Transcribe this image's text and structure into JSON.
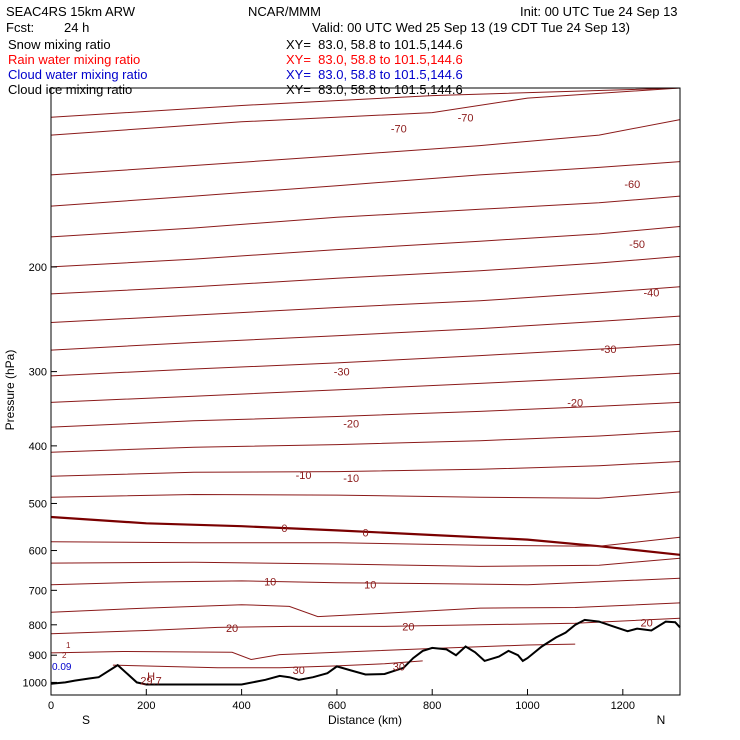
{
  "header": {
    "model": "SEAC4RS 15km ARW",
    "org": "NCAR/MMM",
    "init": "Init: 00 UTC Tue 24 Sep 13",
    "fcst_label": "Fcst:",
    "fcst_value": "24 h",
    "valid": "Valid: 00 UTC Wed 25 Sep 13 (19 CDT Tue 24 Sep 13)"
  },
  "fields": [
    {
      "name": "Snow mixing ratio",
      "xy": "XY=  83.0, 58.8 to 101.5,144.6",
      "color": "#000000"
    },
    {
      "name": "Rain water mixing ratio",
      "xy": "XY=  83.0, 58.8 to 101.5,144.6",
      "color": "#ff0000"
    },
    {
      "name": "Cloud water mixing ratio",
      "xy": "XY=  83.0, 58.8 to 101.5,144.6",
      "color": "#0000cc"
    },
    {
      "name": "Cloud ice mixing ratio",
      "xy": "XY=  83.0, 58.8 to 101.5,144.6",
      "color": "#000000"
    }
  ],
  "colors": {
    "contour": "#8b1a1a",
    "zero_isotherm": "#7a0000",
    "terrain": "#000000",
    "frame": "#000000"
  },
  "chart_data": {
    "type": "line",
    "xlabel": "Distance (km)",
    "ylabel": "Pressure (hPa)",
    "xlim": [
      0,
      1320
    ],
    "ylim": [
      1050,
      100
    ],
    "y_scale": "log-pressure",
    "x_ticks": [
      0,
      200,
      400,
      600,
      800,
      1000,
      1200
    ],
    "y_ticks": [
      200,
      300,
      400,
      500,
      600,
      700,
      800,
      900,
      1000
    ],
    "y_tick_labels": [
      "200",
      "300",
      "400",
      "500",
      "600",
      "700",
      "800",
      "900",
      "1000"
    ],
    "x_end_labels": {
      "left": "S",
      "right": "N"
    },
    "isotherms": [
      {
        "label": "-70",
        "values": [
          [
            0,
            112
          ],
          [
            400,
            107
          ],
          [
            800,
            103
          ],
          [
            1320,
            100
          ]
        ]
      },
      {
        "label": "-70",
        "values": [
          [
            0,
            120
          ],
          [
            400,
            114
          ],
          [
            800,
            110
          ],
          [
            1000,
            104
          ],
          [
            1320,
            100
          ]
        ]
      },
      {
        "label": "-60",
        "values": [
          [
            0,
            140
          ],
          [
            300,
            135
          ],
          [
            600,
            130
          ],
          [
            900,
            125
          ],
          [
            1150,
            120
          ],
          [
            1320,
            113
          ]
        ]
      },
      {
        "label": "-60",
        "values": [
          [
            0,
            158
          ],
          [
            300,
            152
          ],
          [
            600,
            146
          ],
          [
            900,
            140
          ],
          [
            1150,
            136
          ],
          [
            1320,
            133
          ]
        ]
      },
      {
        "label": "-50",
        "values": [
          [
            0,
            178
          ],
          [
            300,
            172
          ],
          [
            600,
            165
          ],
          [
            900,
            160
          ],
          [
            1150,
            156
          ],
          [
            1320,
            152
          ]
        ]
      },
      {
        "label": "-50",
        "values": [
          [
            0,
            200
          ],
          [
            300,
            194
          ],
          [
            600,
            187
          ],
          [
            900,
            181
          ],
          [
            1150,
            176
          ],
          [
            1320,
            171
          ]
        ]
      },
      {
        "label": "-40",
        "values": [
          [
            0,
            222
          ],
          [
            300,
            216
          ],
          [
            600,
            209
          ],
          [
            900,
            203
          ],
          [
            1150,
            197
          ],
          [
            1320,
            192
          ]
        ]
      },
      {
        "label": "-40",
        "values": [
          [
            0,
            248
          ],
          [
            300,
            241
          ],
          [
            600,
            234
          ],
          [
            900,
            228
          ],
          [
            1150,
            221
          ],
          [
            1320,
            216
          ]
        ]
      },
      {
        "label": "-30",
        "values": [
          [
            0,
            276
          ],
          [
            300,
            268
          ],
          [
            600,
            261
          ],
          [
            900,
            254
          ],
          [
            1150,
            247
          ],
          [
            1320,
            242
          ]
        ]
      },
      {
        "label": "-30",
        "values": [
          [
            0,
            305
          ],
          [
            300,
            297
          ],
          [
            600,
            290
          ],
          [
            900,
            282
          ],
          [
            1150,
            275
          ],
          [
            1320,
            270
          ]
        ]
      },
      {
        "label": "-20",
        "values": [
          [
            0,
            338
          ],
          [
            300,
            330
          ],
          [
            600,
            322
          ],
          [
            900,
            314
          ],
          [
            1150,
            307
          ],
          [
            1320,
            302
          ]
        ]
      },
      {
        "label": "-20",
        "values": [
          [
            0,
            372
          ],
          [
            300,
            363
          ],
          [
            600,
            357
          ],
          [
            900,
            350
          ],
          [
            1150,
            343
          ],
          [
            1320,
            338
          ]
        ]
      },
      {
        "label": "-10",
        "values": [
          [
            0,
            410
          ],
          [
            300,
            402
          ],
          [
            600,
            398
          ],
          [
            900,
            392
          ],
          [
            1150,
            385
          ],
          [
            1320,
            378
          ]
        ]
      },
      {
        "label": "-10",
        "values": [
          [
            0,
            450
          ],
          [
            300,
            443
          ],
          [
            600,
            442
          ],
          [
            900,
            438
          ],
          [
            1150,
            432
          ],
          [
            1320,
            425
          ]
        ]
      },
      {
        "label": "",
        "values": [
          [
            0,
            488
          ],
          [
            300,
            483
          ],
          [
            600,
            484
          ],
          [
            900,
            488
          ],
          [
            1150,
            490
          ],
          [
            1320,
            478
          ]
        ]
      },
      {
        "label": "0",
        "values": [
          [
            0,
            527
          ],
          [
            200,
            540
          ],
          [
            400,
            546
          ],
          [
            600,
            555
          ],
          [
            800,
            565
          ],
          [
            1000,
            575
          ],
          [
            1150,
            590
          ],
          [
            1320,
            610
          ]
        ]
      },
      {
        "label": "",
        "values": [
          [
            0,
            580
          ],
          [
            300,
            582
          ],
          [
            600,
            582
          ],
          [
            900,
            588
          ],
          [
            1150,
            590
          ],
          [
            1320,
            570
          ]
        ]
      },
      {
        "label": "",
        "values": [
          [
            0,
            630
          ],
          [
            300,
            628
          ],
          [
            600,
            632
          ],
          [
            900,
            638
          ],
          [
            1150,
            635
          ],
          [
            1320,
            618
          ]
        ]
      },
      {
        "label": "10",
        "values": [
          [
            0,
            685
          ],
          [
            200,
            678
          ],
          [
            400,
            675
          ],
          [
            600,
            680
          ],
          [
            800,
            682
          ],
          [
            1000,
            685
          ],
          [
            1320,
            668
          ]
        ]
      },
      {
        "label": "",
        "values": [
          [
            0,
            762
          ],
          [
            200,
            750
          ],
          [
            400,
            740
          ],
          [
            500,
            745
          ],
          [
            560,
            775
          ],
          [
            700,
            765
          ],
          [
            900,
            750
          ],
          [
            1100,
            748
          ],
          [
            1320,
            735
          ]
        ]
      },
      {
        "label": "20",
        "values": [
          [
            0,
            828
          ],
          [
            200,
            818
          ],
          [
            350,
            808
          ],
          [
            500,
            805
          ],
          [
            700,
            805
          ],
          [
            900,
            800
          ],
          [
            1100,
            795
          ],
          [
            1320,
            780
          ]
        ]
      },
      {
        "label": "",
        "values": [
          [
            0,
            892
          ],
          [
            150,
            887
          ],
          [
            380,
            890
          ],
          [
            420,
            915
          ],
          [
            480,
            898
          ],
          [
            600,
            890
          ],
          [
            800,
            877
          ],
          [
            1000,
            865
          ],
          [
            1100,
            862
          ]
        ]
      },
      {
        "label": "30",
        "values": [
          [
            130,
            935
          ],
          [
            350,
            945
          ],
          [
            480,
            945
          ],
          [
            600,
            938
          ],
          [
            700,
            930
          ],
          [
            780,
            920
          ]
        ]
      }
    ],
    "terrain": [
      [
        0,
        1005
      ],
      [
        30,
        1000
      ],
      [
        50,
        993
      ],
      [
        80,
        985
      ],
      [
        100,
        980
      ],
      [
        140,
        935
      ],
      [
        180,
        1000
      ],
      [
        200,
        1008
      ],
      [
        400,
        1008
      ],
      [
        450,
        990
      ],
      [
        480,
        975
      ],
      [
        500,
        980
      ],
      [
        520,
        990
      ],
      [
        550,
        980
      ],
      [
        580,
        965
      ],
      [
        600,
        940
      ],
      [
        630,
        955
      ],
      [
        660,
        970
      ],
      [
        700,
        968
      ],
      [
        740,
        945
      ],
      [
        760,
        910
      ],
      [
        780,
        885
      ],
      [
        800,
        875
      ],
      [
        830,
        880
      ],
      [
        850,
        900
      ],
      [
        870,
        870
      ],
      [
        890,
        890
      ],
      [
        910,
        920
      ],
      [
        940,
        905
      ],
      [
        960,
        885
      ],
      [
        980,
        900
      ],
      [
        990,
        920
      ],
      [
        1000,
        910
      ],
      [
        1030,
        870
      ],
      [
        1060,
        840
      ],
      [
        1080,
        825
      ],
      [
        1100,
        800
      ],
      [
        1120,
        785
      ],
      [
        1150,
        790
      ],
      [
        1180,
        805
      ],
      [
        1210,
        820
      ],
      [
        1230,
        812
      ],
      [
        1260,
        818
      ],
      [
        1290,
        790
      ],
      [
        1310,
        792
      ],
      [
        1320,
        808
      ]
    ],
    "annotations": [
      {
        "text": "H",
        "x": 210,
        "p": 975
      },
      {
        "text": "29.7",
        "x": 210,
        "p": 992
      },
      {
        "text": "30",
        "x": 520,
        "p": 953
      },
      {
        "text": "30",
        "x": 730,
        "p": 940
      },
      {
        "text": "20",
        "x": 1250,
        "p": 793
      },
      {
        "text": "-10",
        "x": 530,
        "p": 448
      },
      {
        "text": "-10",
        "x": 630,
        "p": 453
      },
      {
        "text": "-20",
        "x": 630,
        "p": 367
      },
      {
        "text": "-20",
        "x": 1100,
        "p": 338
      },
      {
        "text": "-30",
        "x": 610,
        "p": 300
      },
      {
        "text": "-30",
        "x": 1170,
        "p": 275
      },
      {
        "text": "-40",
        "x": 1260,
        "p": 221
      },
      {
        "text": "-50",
        "x": 1230,
        "p": 183
      },
      {
        "text": "-60",
        "x": 1220,
        "p": 145
      },
      {
        "text": "-70",
        "x": 730,
        "p": 117
      },
      {
        "text": "-70",
        "x": 870,
        "p": 112
      },
      {
        "text": "0",
        "x": 490,
        "p": 550
      },
      {
        "text": "0",
        "x": 660,
        "p": 559
      },
      {
        "text": "10",
        "x": 460,
        "p": 677
      },
      {
        "text": "10",
        "x": 670,
        "p": 684
      },
      {
        "text": "20",
        "x": 380,
        "p": 810
      },
      {
        "text": "20",
        "x": 750,
        "p": 805
      }
    ],
    "cloud_water_label": "0.09",
    "small_contour_labels": [
      "2",
      "1"
    ]
  }
}
